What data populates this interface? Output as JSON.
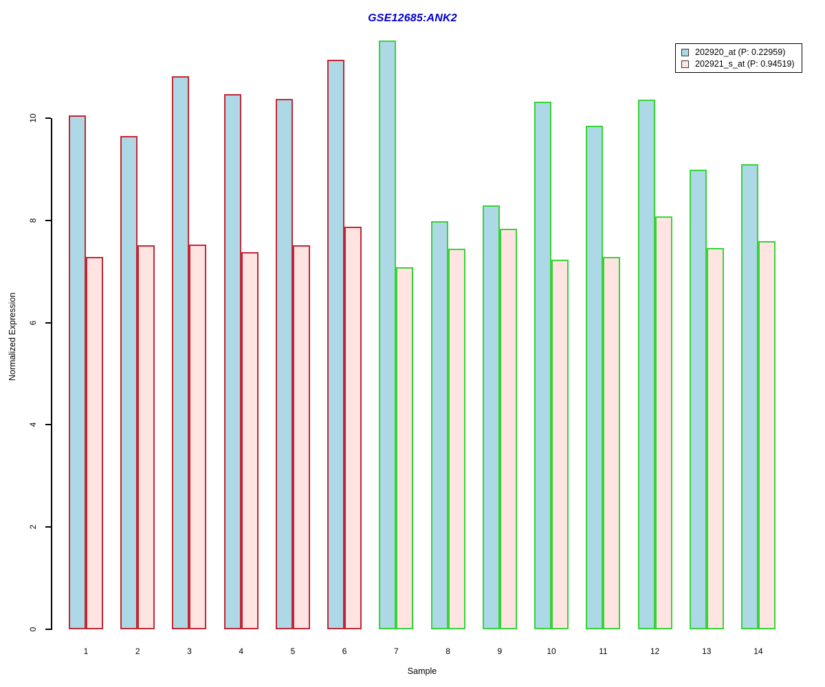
{
  "title": {
    "text": "GSE12685:ANK2",
    "color": "#0000CC"
  },
  "chart_data": {
    "type": "bar",
    "title": "GSE12685:ANK2",
    "xlabel": "Sample",
    "ylabel": "Normalized Expression",
    "categories": [
      "1",
      "2",
      "3",
      "4",
      "5",
      "6",
      "7",
      "8",
      "9",
      "10",
      "11",
      "12",
      "13",
      "14"
    ],
    "series": [
      {
        "name": "202920_at (P: 0.22959)",
        "fill": "#ADD8E6",
        "values": [
          10.05,
          9.65,
          10.82,
          10.47,
          10.38,
          11.14,
          11.52,
          7.98,
          8.29,
          10.32,
          9.85,
          10.36,
          8.99,
          9.1
        ]
      },
      {
        "name": "202921_s_at (P: 0.94519)",
        "fill": "#FFE4E1",
        "values": [
          7.28,
          7.51,
          7.53,
          7.38,
          7.51,
          7.88,
          7.08,
          7.45,
          7.84,
          7.23,
          7.28,
          8.08,
          7.46,
          7.59
        ]
      }
    ],
    "bar_border_colors": [
      "#C22533",
      "#C22533",
      "#C22533",
      "#C22533",
      "#C22533",
      "#C22533",
      "#35D435",
      "#35D435",
      "#35D435",
      "#35D435",
      "#35D435",
      "#35D435",
      "#35D435",
      "#35D435"
    ],
    "yticks": [
      0,
      2,
      4,
      6,
      8,
      10
    ],
    "ylim": [
      0,
      11.6
    ],
    "grid": false,
    "legend_position": "topright"
  },
  "colors": {
    "axis": "#000000",
    "red_group_border": "#C22533",
    "green_group_border": "#35D435",
    "blue_fill": "#ADD8E6",
    "pink_fill": "#FFE4E1",
    "legend_border": "#000000",
    "legend_swatch_border": "#333333"
  }
}
